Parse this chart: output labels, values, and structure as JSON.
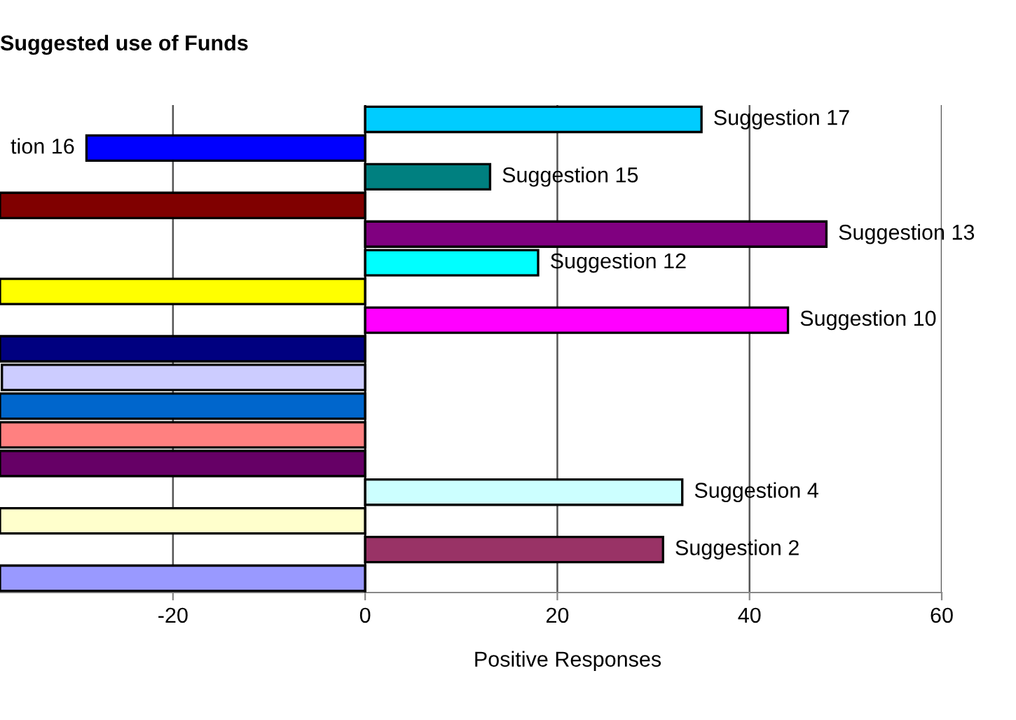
{
  "chart_data": {
    "type": "bar",
    "orientation": "horizontal",
    "title": "Suggested use of Funds",
    "xlabel": "Positive Responses",
    "categories": [
      "Suggestion 17",
      "tion 16",
      "Suggestion 15",
      null,
      "Suggestion 13",
      "Suggestion 12",
      null,
      "Suggestion 10",
      null,
      null,
      null,
      null,
      null,
      "Suggestion 4",
      null,
      "Suggestion 2",
      null
    ],
    "values": [
      35,
      -29,
      13,
      -38,
      48,
      18,
      -38,
      44,
      -38,
      -37.8,
      -38,
      -38,
      -38,
      33,
      -38,
      31,
      -38
    ],
    "colors": [
      "#00ccff",
      "#0000ff",
      "#008080",
      "#800000",
      "#800080",
      "#00ffff",
      "#ffff00",
      "#ff00ff",
      "#000080",
      "#ccccff",
      "#0066cc",
      "#ff8080",
      "#660066",
      "#ccffff",
      "#ffffcc",
      "#993366",
      "#9999ff"
    ],
    "xlim": [
      -38,
      60
    ],
    "xticks": [
      -20,
      0,
      20,
      40,
      60
    ],
    "grid": "x",
    "tick_labels": "x"
  }
}
